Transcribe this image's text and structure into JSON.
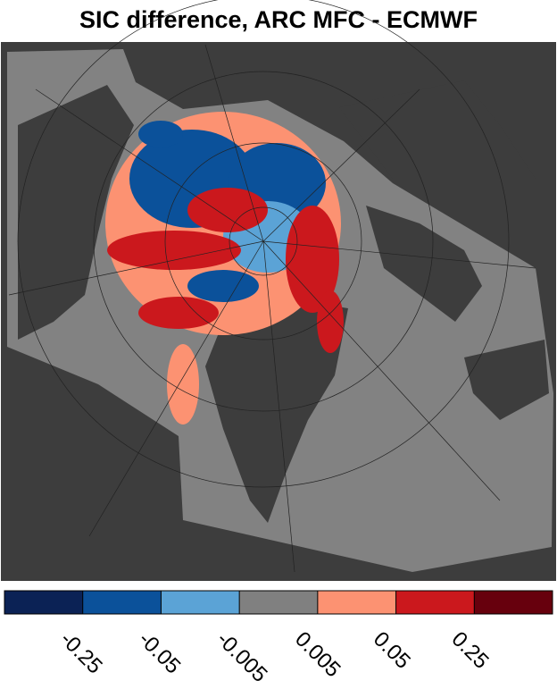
{
  "title": "SIC difference, ARC MFC - ECMWF",
  "colorbar": {
    "colors": [
      "#0b2255",
      "#0b519a",
      "#5ba3d6",
      "#808080",
      "#fc9272",
      "#cb181d",
      "#67000d"
    ],
    "ticks": [
      -0.25,
      -0.05,
      -0.005,
      0.005,
      0.05,
      0.25
    ]
  }
}
